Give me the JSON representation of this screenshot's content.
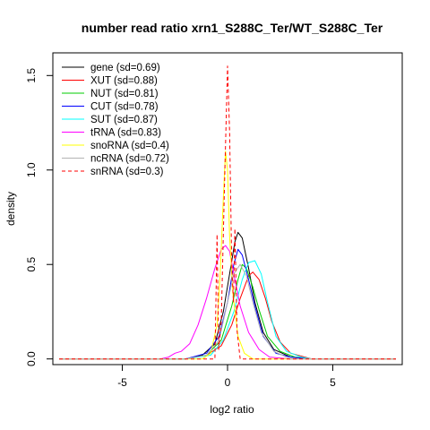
{
  "chart_data": {
    "type": "line",
    "title": "number read ratio xrn1_S288C_Ter/WT_S288C_Ter",
    "xlabel": "log2 ratio",
    "ylabel": "density",
    "xlim": [
      -8.3,
      8.3
    ],
    "ylim": [
      -0.03,
      1.62
    ],
    "x_ticks": [
      -5,
      0,
      5
    ],
    "x_tick_labels": [
      "-5",
      "0",
      "5"
    ],
    "y_ticks": [
      0.0,
      0.5,
      1.0,
      1.5
    ],
    "y_tick_labels": [
      "0.0",
      "0.5",
      "1.0",
      "1.5"
    ],
    "grid": false,
    "legend_position": "top-left",
    "x_range": [
      -8,
      8
    ],
    "series": [
      {
        "name": "gene (sd=0.69)",
        "color": "#000000",
        "dash": "solid",
        "points": [
          [
            -8,
            0
          ],
          [
            -2,
            0
          ],
          [
            -1.2,
            0.02
          ],
          [
            -0.6,
            0.08
          ],
          [
            -0.2,
            0.25
          ],
          [
            0.1,
            0.45
          ],
          [
            0.35,
            0.62
          ],
          [
            0.5,
            0.67
          ],
          [
            0.7,
            0.64
          ],
          [
            1.0,
            0.48
          ],
          [
            1.3,
            0.3
          ],
          [
            1.7,
            0.14
          ],
          [
            2.2,
            0.05
          ],
          [
            3.0,
            0.01
          ],
          [
            4,
            0
          ],
          [
            8,
            0
          ]
        ]
      },
      {
        "name": "XUT (sd=0.88)",
        "color": "#ff0000",
        "dash": "solid",
        "points": [
          [
            -8,
            0
          ],
          [
            -2,
            0
          ],
          [
            -1.0,
            0.02
          ],
          [
            -0.3,
            0.07
          ],
          [
            0.2,
            0.18
          ],
          [
            0.6,
            0.32
          ],
          [
            1.0,
            0.44
          ],
          [
            1.2,
            0.46
          ],
          [
            1.5,
            0.42
          ],
          [
            1.8,
            0.32
          ],
          [
            2.1,
            0.2
          ],
          [
            2.5,
            0.09
          ],
          [
            3.0,
            0.03
          ],
          [
            4,
            0
          ],
          [
            8,
            0
          ]
        ]
      },
      {
        "name": "NUT (sd=0.81)",
        "color": "#00cc00",
        "dash": "solid",
        "points": [
          [
            -8,
            0
          ],
          [
            -2,
            0
          ],
          [
            -1.0,
            0.02
          ],
          [
            -0.3,
            0.1
          ],
          [
            0.2,
            0.28
          ],
          [
            0.5,
            0.42
          ],
          [
            0.7,
            0.5
          ],
          [
            0.9,
            0.48
          ],
          [
            1.2,
            0.38
          ],
          [
            1.5,
            0.26
          ],
          [
            1.9,
            0.12
          ],
          [
            2.5,
            0.04
          ],
          [
            3.2,
            0.01
          ],
          [
            4,
            0
          ],
          [
            8,
            0
          ]
        ]
      },
      {
        "name": "CUT (sd=0.78)",
        "color": "#0000ff",
        "dash": "solid",
        "points": [
          [
            -8,
            0
          ],
          [
            -2,
            0
          ],
          [
            -1.0,
            0.03
          ],
          [
            -0.4,
            0.12
          ],
          [
            0.0,
            0.3
          ],
          [
            0.3,
            0.5
          ],
          [
            0.5,
            0.58
          ],
          [
            0.7,
            0.55
          ],
          [
            1.0,
            0.42
          ],
          [
            1.3,
            0.28
          ],
          [
            1.7,
            0.12
          ],
          [
            2.3,
            0.03
          ],
          [
            3.0,
            0.01
          ],
          [
            4,
            0
          ],
          [
            8,
            0
          ]
        ]
      },
      {
        "name": "SUT (sd=0.87)",
        "color": "#00ffff",
        "dash": "solid",
        "points": [
          [
            -8,
            0
          ],
          [
            -2,
            0
          ],
          [
            -0.8,
            0.02
          ],
          [
            -0.2,
            0.1
          ],
          [
            0.3,
            0.25
          ],
          [
            0.7,
            0.42
          ],
          [
            1.0,
            0.51
          ],
          [
            1.3,
            0.52
          ],
          [
            1.6,
            0.45
          ],
          [
            1.9,
            0.3
          ],
          [
            2.3,
            0.12
          ],
          [
            2.8,
            0.04
          ],
          [
            3.5,
            0.01
          ],
          [
            4,
            0
          ],
          [
            8,
            0
          ]
        ]
      },
      {
        "name": "tRNA (sd=0.83)",
        "color": "#ff00ff",
        "dash": "solid",
        "points": [
          [
            -8,
            0
          ],
          [
            -3.2,
            0
          ],
          [
            -2.8,
            0.01
          ],
          [
            -2.5,
            0.03
          ],
          [
            -2.2,
            0.04
          ],
          [
            -1.8,
            0.08
          ],
          [
            -1.4,
            0.18
          ],
          [
            -1.0,
            0.32
          ],
          [
            -0.6,
            0.48
          ],
          [
            -0.3,
            0.58
          ],
          [
            -0.1,
            0.6
          ],
          [
            0.1,
            0.57
          ],
          [
            0.3,
            0.45
          ],
          [
            0.6,
            0.28
          ],
          [
            1.0,
            0.14
          ],
          [
            1.5,
            0.05
          ],
          [
            2.0,
            0.01
          ],
          [
            3,
            0
          ],
          [
            8,
            0
          ]
        ]
      },
      {
        "name": "snoRNA (sd=0.4)",
        "color": "#ffff00",
        "dash": "solid",
        "points": [
          [
            -8,
            0
          ],
          [
            -1.2,
            0
          ],
          [
            -0.8,
            0.03
          ],
          [
            -0.5,
            0.18
          ],
          [
            -0.35,
            0.45
          ],
          [
            -0.2,
            0.85
          ],
          [
            -0.1,
            1.1
          ],
          [
            0.0,
            1.0
          ],
          [
            0.1,
            0.65
          ],
          [
            0.25,
            0.35
          ],
          [
            0.5,
            0.12
          ],
          [
            0.8,
            0.03
          ],
          [
            1.2,
            0
          ],
          [
            8,
            0
          ]
        ]
      },
      {
        "name": "ncRNA (sd=0.72)",
        "color": "#b3b3b3",
        "dash": "solid",
        "points": [
          [
            -8,
            0
          ],
          [
            -2,
            0
          ],
          [
            -1.0,
            0.02
          ],
          [
            -0.4,
            0.1
          ],
          [
            0.0,
            0.3
          ],
          [
            0.3,
            0.45
          ],
          [
            0.6,
            0.5
          ],
          [
            0.9,
            0.44
          ],
          [
            1.2,
            0.3
          ],
          [
            1.6,
            0.14
          ],
          [
            2.2,
            0.04
          ],
          [
            3,
            0
          ],
          [
            8,
            0
          ]
        ]
      },
      {
        "name": "snRNA (sd=0.3)",
        "color": "#ff0000",
        "dash": "dashed",
        "points": [
          [
            -8,
            0
          ],
          [
            -0.6,
            0
          ],
          [
            -0.5,
            0.66
          ],
          [
            -0.42,
            0.05
          ],
          [
            -0.3,
            0.2
          ],
          [
            -0.15,
            0.9
          ],
          [
            0.0,
            1.55
          ],
          [
            0.1,
            1.2
          ],
          [
            0.2,
            0.5
          ],
          [
            0.28,
            0.3
          ],
          [
            0.35,
            0.69
          ],
          [
            0.45,
            0.15
          ],
          [
            0.6,
            0
          ],
          [
            8,
            0
          ]
        ]
      }
    ]
  }
}
